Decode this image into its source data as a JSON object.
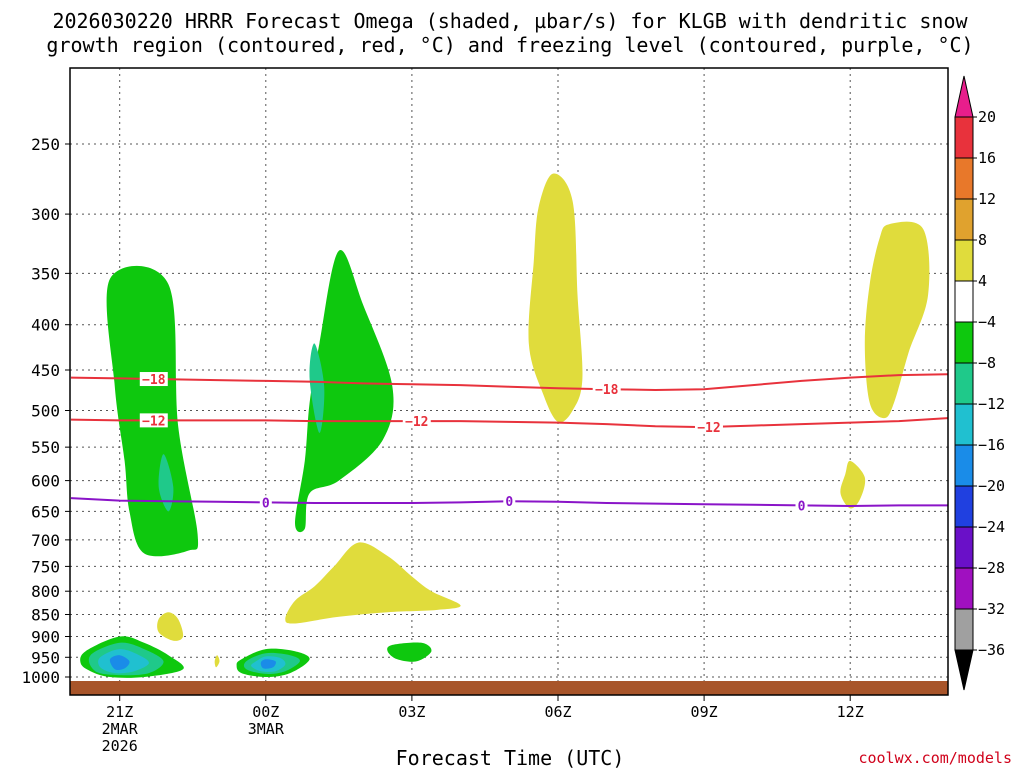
{
  "chart_data": {
    "type": "time-height",
    "title_line1": "2026030220 HRRR Forecast Omega (shaded, µbar/s) for KLGB with dendritic snow",
    "title_line2": "growth region (contoured, red, °C) and freezing level (contoured, purple, °C)",
    "xlabel": "Forecast Time (UTC)",
    "credit": "coolwx.com/models",
    "y_levels": [
      250,
      300,
      350,
      400,
      450,
      500,
      550,
      600,
      650,
      700,
      750,
      800,
      850,
      900,
      950,
      1000
    ],
    "x_ticks": [
      {
        "hour": 1,
        "lines": [
          "21Z",
          "2MAR",
          "2026"
        ]
      },
      {
        "hour": 4,
        "lines": [
          "00Z",
          "3MAR"
        ]
      },
      {
        "hour": 7,
        "lines": [
          "03Z"
        ]
      },
      {
        "hour": 10,
        "lines": [
          "06Z"
        ]
      },
      {
        "hour": 13,
        "lines": [
          "09Z"
        ]
      },
      {
        "hour": 16,
        "lines": [
          "12Z"
        ]
      }
    ],
    "x_range": [
      0,
      18
    ],
    "y_range": [
      200,
      1030
    ],
    "colorbar": {
      "labels": [
        "20",
        "16",
        "12",
        "8",
        "4",
        "-4",
        "-8",
        "-12",
        "-16",
        "-20",
        "-24",
        "-28",
        "-32",
        "-36"
      ],
      "colors": [
        "#e81e8c",
        "#e8323c",
        "#e8782a",
        "#e0a22e",
        "#e0dc3c",
        "#ffffff",
        "#0ec80e",
        "#1fc98a",
        "#20c0d0",
        "#1a8ce8",
        "#2040e0",
        "#6a10c8",
        "#a010c0",
        "#a0a0a0",
        "#000000"
      ]
    },
    "contours": [
      {
        "name": "-18",
        "color": "#e8323c",
        "label_hours": [
          1.7,
          11.0
        ],
        "points": [
          [
            0,
            459
          ],
          [
            1,
            460
          ],
          [
            2,
            461
          ],
          [
            3,
            462
          ],
          [
            4,
            463
          ],
          [
            5,
            464
          ],
          [
            6,
            466
          ],
          [
            7,
            467
          ],
          [
            8,
            468
          ],
          [
            9,
            470
          ],
          [
            10,
            472
          ],
          [
            11,
            473
          ],
          [
            12,
            474
          ],
          [
            13,
            473
          ],
          [
            14,
            468
          ],
          [
            15,
            463
          ],
          [
            16,
            459
          ],
          [
            17,
            456
          ],
          [
            18,
            455
          ]
        ]
      },
      {
        "name": "-12",
        "color": "#e8323c",
        "label_hours": [
          1.7,
          7.1,
          13.1
        ],
        "points": [
          [
            0,
            512
          ],
          [
            1,
            513
          ],
          [
            2,
            513
          ],
          [
            3,
            513
          ],
          [
            4,
            513
          ],
          [
            5,
            514
          ],
          [
            6,
            514
          ],
          [
            7,
            514
          ],
          [
            8,
            514
          ],
          [
            9,
            515
          ],
          [
            10,
            516
          ],
          [
            11,
            518
          ],
          [
            12,
            521
          ],
          [
            13,
            522
          ],
          [
            14,
            520
          ],
          [
            15,
            518
          ],
          [
            16,
            516
          ],
          [
            17,
            514
          ],
          [
            18,
            510
          ]
        ]
      },
      {
        "name": "0",
        "color": "#8a14c8",
        "label_hours": [
          4.0,
          9.0,
          15.0
        ],
        "points": [
          [
            0,
            628
          ],
          [
            1,
            632
          ],
          [
            2,
            633
          ],
          [
            3,
            634
          ],
          [
            4,
            635
          ],
          [
            5,
            636
          ],
          [
            6,
            636
          ],
          [
            7,
            636
          ],
          [
            8,
            635
          ],
          [
            9,
            633
          ],
          [
            10,
            634
          ],
          [
            11,
            636
          ],
          [
            12,
            637
          ],
          [
            13,
            638
          ],
          [
            14,
            639
          ],
          [
            15,
            640
          ],
          [
            16,
            641
          ],
          [
            17,
            640
          ],
          [
            18,
            640
          ]
        ]
      }
    ],
    "regions": [
      {
        "name": "green-1",
        "color": "#0ec80e",
        "points": [
          [
            0.8,
            355
          ],
          [
            2.0,
            360
          ],
          [
            2.2,
            520
          ],
          [
            2.6,
            690
          ],
          [
            2.4,
            720
          ],
          [
            1.5,
            725
          ],
          [
            1.2,
            650
          ],
          [
            1.1,
            570
          ],
          [
            0.9,
            470
          ]
        ]
      },
      {
        "name": "teal-1",
        "color": "#1fc98a",
        "points": [
          [
            1.9,
            560
          ],
          [
            2.1,
            610
          ],
          [
            2.0,
            650
          ],
          [
            1.8,
            610
          ]
        ]
      },
      {
        "name": "green-2",
        "color": "#0ec80e",
        "points": [
          [
            5.5,
            330
          ],
          [
            6.0,
            380
          ],
          [
            6.6,
            470
          ],
          [
            6.4,
            540
          ],
          [
            5.5,
            600
          ],
          [
            4.9,
            620
          ],
          [
            4.8,
            680
          ],
          [
            4.6,
            670
          ],
          [
            4.8,
            570
          ],
          [
            4.9,
            490
          ],
          [
            5.1,
            420
          ]
        ]
      },
      {
        "name": "teal-2",
        "color": "#1fc98a",
        "points": [
          [
            5.0,
            420
          ],
          [
            5.2,
            470
          ],
          [
            5.1,
            530
          ],
          [
            4.9,
            460
          ]
        ]
      },
      {
        "name": "yellow-06z",
        "color": "#e0dc3c",
        "points": [
          [
            9.9,
            270
          ],
          [
            10.3,
            290
          ],
          [
            10.4,
            370
          ],
          [
            10.5,
            460
          ],
          [
            10.3,
            500
          ],
          [
            10.0,
            515
          ],
          [
            9.7,
            480
          ],
          [
            9.4,
            420
          ],
          [
            9.5,
            340
          ],
          [
            9.6,
            295
          ]
        ]
      },
      {
        "name": "yellow-right",
        "color": "#e0dc3c",
        "points": [
          [
            16.8,
            308
          ],
          [
            17.5,
            312
          ],
          [
            17.6,
            370
          ],
          [
            17.2,
            430
          ],
          [
            16.9,
            490
          ],
          [
            16.7,
            510
          ],
          [
            16.4,
            490
          ],
          [
            16.3,
            420
          ],
          [
            16.4,
            360
          ],
          [
            16.6,
            320
          ]
        ]
      },
      {
        "name": "yellow-low",
        "color": "#e0dc3c",
        "points": [
          [
            5.9,
            705
          ],
          [
            6.5,
            730
          ],
          [
            7.0,
            770
          ],
          [
            7.4,
            800
          ],
          [
            8.0,
            830
          ],
          [
            7.5,
            840
          ],
          [
            6.5,
            845
          ],
          [
            5.5,
            855
          ],
          [
            4.6,
            870
          ],
          [
            4.4,
            860
          ],
          [
            4.6,
            820
          ],
          [
            5.0,
            790
          ],
          [
            5.4,
            750
          ]
        ]
      },
      {
        "name": "yellow-12z",
        "color": "#e0dc3c",
        "points": [
          [
            16.0,
            570
          ],
          [
            16.3,
            595
          ],
          [
            16.2,
            630
          ],
          [
            16.0,
            645
          ],
          [
            15.8,
            620
          ],
          [
            15.9,
            590
          ]
        ]
      },
      {
        "name": "yellow-small-1",
        "color": "#e0dc3c",
        "points": [
          [
            2.0,
            845
          ],
          [
            2.2,
            860
          ],
          [
            2.3,
            900
          ],
          [
            2.1,
            910
          ],
          [
            1.8,
            890
          ],
          [
            1.8,
            860
          ]
        ]
      },
      {
        "name": "yellow-small-2",
        "color": "#e0dc3c",
        "points": [
          [
            3.0,
            945
          ],
          [
            3.05,
            960
          ],
          [
            2.98,
            975
          ],
          [
            2.95,
            960
          ]
        ]
      },
      {
        "name": "green-low-1",
        "color": "#0ec80e",
        "points": [
          [
            0.3,
            935
          ],
          [
            1.0,
            900
          ],
          [
            1.5,
            915
          ],
          [
            2.0,
            945
          ],
          [
            2.3,
            980
          ],
          [
            1.5,
            1000
          ],
          [
            0.8,
            1000
          ],
          [
            0.4,
            985
          ],
          [
            0.2,
            965
          ]
        ]
      },
      {
        "name": "teal-low-1",
        "color": "#1fc98a",
        "points": [
          [
            0.4,
            945
          ],
          [
            1.0,
            915
          ],
          [
            1.5,
            930
          ],
          [
            1.9,
            960
          ],
          [
            1.6,
            990
          ],
          [
            1.0,
            995
          ],
          [
            0.5,
            985
          ]
        ]
      },
      {
        "name": "cyan-low-1",
        "color": "#20c0d0",
        "points": [
          [
            0.6,
            950
          ],
          [
            1.0,
            930
          ],
          [
            1.4,
            945
          ],
          [
            1.6,
            965
          ],
          [
            1.3,
            985
          ],
          [
            0.9,
            990
          ],
          [
            0.6,
            975
          ]
        ]
      },
      {
        "name": "lblue-low-1",
        "color": "#1a8ce8",
        "points": [
          [
            0.8,
            955
          ],
          [
            1.0,
            945
          ],
          [
            1.2,
            960
          ],
          [
            1.1,
            978
          ],
          [
            0.9,
            980
          ]
        ]
      },
      {
        "name": "green-low-2",
        "color": "#0ec80e",
        "points": [
          [
            3.5,
            955
          ],
          [
            4.0,
            930
          ],
          [
            4.6,
            935
          ],
          [
            4.9,
            955
          ],
          [
            4.5,
            990
          ],
          [
            4.0,
            1000
          ],
          [
            3.5,
            990
          ],
          [
            3.4,
            970
          ]
        ]
      },
      {
        "name": "teal-low-2",
        "color": "#1fc98a",
        "points": [
          [
            3.6,
            960
          ],
          [
            4.0,
            940
          ],
          [
            4.5,
            945
          ],
          [
            4.7,
            960
          ],
          [
            4.4,
            985
          ],
          [
            4.0,
            992
          ],
          [
            3.6,
            980
          ]
        ]
      },
      {
        "name": "cyan-low-2",
        "color": "#20c0d0",
        "points": [
          [
            3.8,
            960
          ],
          [
            4.0,
            948
          ],
          [
            4.3,
            952
          ],
          [
            4.4,
            968
          ],
          [
            4.2,
            985
          ],
          [
            3.9,
            985
          ],
          [
            3.7,
            972
          ]
        ]
      },
      {
        "name": "lblue-low-2",
        "color": "#1a8ce8",
        "points": [
          [
            3.9,
            963
          ],
          [
            4.0,
            955
          ],
          [
            4.2,
            960
          ],
          [
            4.15,
            975
          ],
          [
            3.95,
            978
          ]
        ]
      },
      {
        "name": "green-low-3",
        "color": "#0ec80e",
        "points": [
          [
            6.6,
            920
          ],
          [
            7.2,
            915
          ],
          [
            7.4,
            935
          ],
          [
            7.1,
            960
          ],
          [
            6.7,
            955
          ],
          [
            6.5,
            935
          ]
        ]
      }
    ],
    "ground_color": "#a8552a"
  }
}
